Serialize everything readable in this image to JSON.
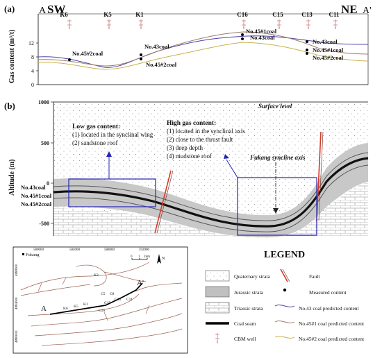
{
  "panel_a": {
    "label": "(a)",
    "left_end": "A",
    "left_dir": "SW",
    "right_dir": "NE",
    "right_end": "A'",
    "ylabel": "Gas content (m³/t)",
    "yticks": [
      "0",
      "4",
      "8",
      "12"
    ],
    "wells": [
      "K6",
      "K5",
      "K1",
      "C16",
      "C15",
      "C13",
      "C11"
    ],
    "annotations": {
      "no45_2_left": "No.45#2coal",
      "no43_mid": "No.43coal",
      "no45_2_mid": "No.45#2coal",
      "no45_1_c16": "No.45#1coal",
      "no43_c16": "No.43coal",
      "no43_right": "No.43coal",
      "no45_1_right": "No.45#1coal",
      "no45_2_right": "No.45#2coal"
    },
    "colors": {
      "no43": "#4b43a8",
      "no45_1": "#a07a6a",
      "no45_2": "#c9b24a"
    }
  },
  "panel_b": {
    "label": "(b)",
    "ylabel": "Altitude (m)",
    "yticks": [
      "1000",
      "500",
      "0",
      "-500"
    ],
    "surface_label": "Surface level",
    "seam_labels": [
      "No.43coal",
      "No.45#1coal",
      "No.45#2coal"
    ],
    "low_gas": {
      "title": "Low gas content:",
      "items": [
        "(1) located in the synclinal wing",
        "(2) sandstone roof"
      ]
    },
    "high_gas": {
      "title": "High gas content:",
      "items": [
        "(1) located in the synclinal axis",
        "(2) close to the thrust fault",
        "(3) deep depth",
        "(4) mudstone roof"
      ]
    },
    "axis_label": "Fukang syncline axis",
    "colors": {
      "box": "#2424b8",
      "fault": "#d43a2a"
    }
  },
  "map": {
    "place": "Fukang",
    "x_ticks": [
      "580000",
      "584000",
      "588000",
      "592000"
    ],
    "y_ticks": [
      "4888000",
      "4884000",
      "4880000"
    ],
    "scale": [
      "0",
      "1",
      "2km"
    ],
    "north": "N",
    "section_start": "A",
    "section_end": "A'",
    "wells": [
      "K6",
      "K5",
      "K1",
      "K2",
      "C5",
      "C8",
      "C15",
      "C13",
      "C11",
      "C16"
    ]
  },
  "legend": {
    "title": "LEGEND",
    "items": [
      {
        "key": "quaternary",
        "label": "Quaternary strata"
      },
      {
        "key": "fault",
        "label": "Fault"
      },
      {
        "key": "jurassic",
        "label": "Jurassic strata"
      },
      {
        "key": "measured",
        "label": "Measured content"
      },
      {
        "key": "triassic",
        "label": "Triassic strata"
      },
      {
        "key": "no43",
        "label": "No.43 coal predicted content"
      },
      {
        "key": "seam",
        "label": "Coal seam"
      },
      {
        "key": "no45_1",
        "label": "No.45#1 coal predicted content"
      },
      {
        "key": "cbm",
        "label": "CBM well"
      },
      {
        "key": "no45_2",
        "label": "No.45#2 coal predicted content"
      }
    ]
  }
}
